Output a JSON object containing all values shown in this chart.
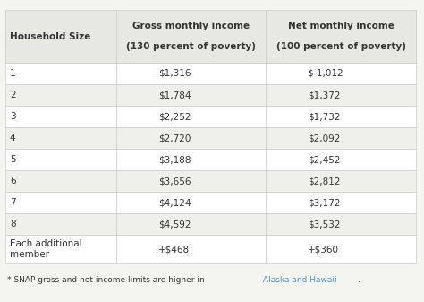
{
  "col_headers": [
    "Household Size",
    "Gross monthly income\n\n(130 percent of poverty)",
    "Net monthly income\n\n(100 percent of poverty)"
  ],
  "rows": [
    [
      "1",
      "$1,316",
      "$ 1,012"
    ],
    [
      "2",
      "$1,784",
      "$1,372"
    ],
    [
      "3",
      "$2,252",
      "$1,732"
    ],
    [
      "4",
      "$2,720",
      "$2,092"
    ],
    [
      "5",
      "$3,188",
      "$2,452"
    ],
    [
      "6",
      "$3,656",
      "$2,812"
    ],
    [
      "7",
      "$4,124",
      "$3,172"
    ],
    [
      "8",
      "$4,592",
      "$3,532"
    ],
    [
      "Each additional\nmember",
      "+$468",
      "+$360"
    ]
  ],
  "footnote_normal": "* SNAP gross and net income limits are higher in ",
  "footnote_link": "Alaska and Hawaii",
  "footnote_end": ".",
  "bg_color": "#f5f5f0",
  "header_bg": "#e8e8e3",
  "row_bg_odd": "#ffffff",
  "row_bg_even": "#f0f0eb",
  "border_color": "#cccccc",
  "text_color": "#333333",
  "header_text_color": "#333333",
  "link_color": "#4a90c4",
  "font_size": 7.5,
  "header_font_size": 7.5
}
